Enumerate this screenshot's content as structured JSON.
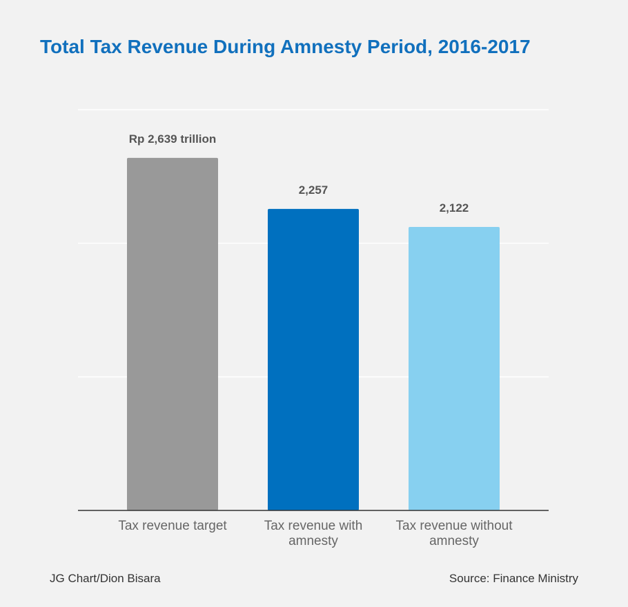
{
  "title": "Total Tax Revenue During Amnesty Period, 2016-2017",
  "credit": "JG Chart/Dion Bisara",
  "source": "Source: Finance Ministry",
  "chart_data": {
    "type": "bar",
    "title": "Total Tax Revenue During Amnesty Period, 2016-2017",
    "xlabel": "",
    "ylabel": "",
    "unit": "Rp trillion",
    "categories": [
      [
        "Tax revenue target"
      ],
      [
        "Tax revenue with",
        "amnesty"
      ],
      [
        "Tax revenue without",
        "amnesty"
      ]
    ],
    "values": [
      2639,
      2257,
      2122
    ],
    "data_labels": [
      "Rp 2,639 trillion",
      "2,257",
      "2,122"
    ],
    "colors": [
      "#999999",
      "#0070bf",
      "#87d0f0"
    ],
    "ylim": [
      0,
      3000
    ],
    "gridlines": [
      1000,
      2000,
      3000
    ],
    "grid": true,
    "legend": "none"
  }
}
